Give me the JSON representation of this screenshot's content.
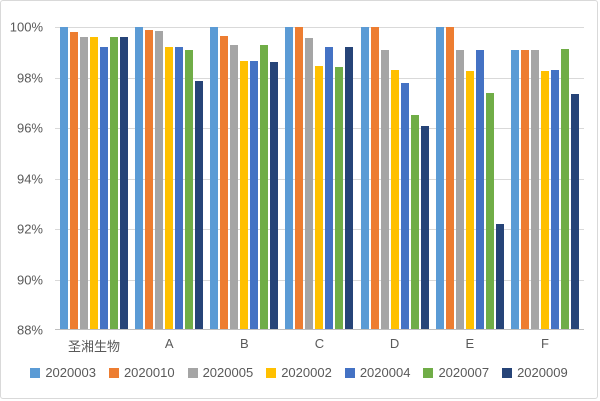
{
  "chart_data": {
    "type": "bar",
    "title": "",
    "xlabel": "",
    "ylabel": "",
    "categories": [
      "圣湘生物",
      "A",
      "B",
      "C",
      "D",
      "E",
      "F"
    ],
    "series": [
      {
        "name": "2020003",
        "color": "#5B9BD5",
        "values": [
          100,
          100,
          100,
          100,
          100,
          100,
          99.1
        ]
      },
      {
        "name": "2020010",
        "color": "#ED7D31",
        "values": [
          99.8,
          99.9,
          99.65,
          100,
          100,
          100,
          99.1
        ]
      },
      {
        "name": "2020005",
        "color": "#A5A5A5",
        "values": [
          99.6,
          99.85,
          99.3,
          99.55,
          99.1,
          99.1,
          99.1
        ]
      },
      {
        "name": "2020002",
        "color": "#FFC000",
        "values": [
          99.6,
          99.2,
          98.65,
          98.45,
          98.3,
          98.25,
          98.25
        ]
      },
      {
        "name": "2020004",
        "color": "#4472C4",
        "values": [
          99.2,
          99.2,
          98.65,
          99.2,
          97.8,
          99.1,
          98.3
        ]
      },
      {
        "name": "2020007",
        "color": "#70AD47",
        "values": [
          99.6,
          99.1,
          99.3,
          98.4,
          96.5,
          97.4,
          99.15
        ]
      },
      {
        "name": "2020009",
        "color": "#264478",
        "values": [
          99.6,
          97.85,
          98.6,
          99.2,
          96.1,
          92.2,
          97.35
        ]
      }
    ],
    "ylim": [
      88,
      100
    ],
    "ytick_values": [
      100,
      98,
      96,
      94,
      92,
      90,
      88
    ],
    "ytick_labels": [
      "100%",
      "98%",
      "96%",
      "94%",
      "92%",
      "90%",
      "88%"
    ],
    "grid": true,
    "legend_position": "bottom"
  },
  "style": {
    "gridline_color": "#d9d9d9",
    "axis_line_color": "#bfbfbf",
    "text_color": "#595959",
    "background_color": "#ffffff",
    "border_color": "#d9d9d9"
  }
}
